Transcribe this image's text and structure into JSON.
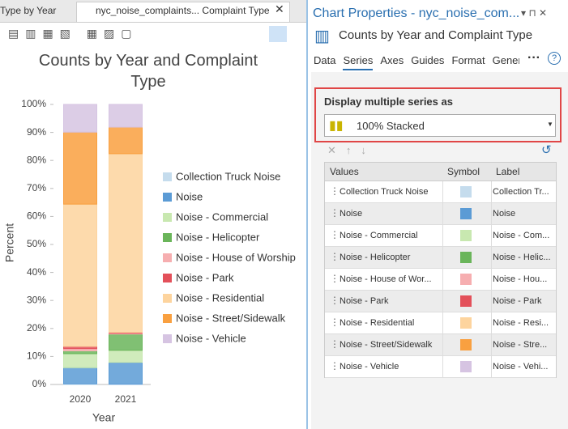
{
  "tabs": [
    "Type by Year",
    "nyc_noise_complaints... Complaint Type"
  ],
  "chart_data": {
    "type": "bar",
    "stacked": true,
    "title": "Counts by Year and Complaint Type",
    "x_label": "Year",
    "y_label": "Percent",
    "categories": [
      "2020",
      "2021"
    ],
    "series": [
      {
        "name": "Collection Truck Noise",
        "color": "#c5dced",
        "values": [
          0.2,
          0.1
        ]
      },
      {
        "name": "Noise",
        "color": "#5b9bd5",
        "values": [
          5.8,
          7.8
        ]
      },
      {
        "name": "Noise - Commercial",
        "color": "#c8e8b0",
        "values": [
          5,
          4.3
        ]
      },
      {
        "name": "Noise - Helicopter",
        "color": "#6ab55a",
        "values": [
          1,
          5.8
        ]
      },
      {
        "name": "Noise - House of Worship",
        "color": "#f6aeb0",
        "values": [
          0.8,
          0.3
        ]
      },
      {
        "name": "Noise - Park",
        "color": "#e3505a",
        "values": [
          0.8,
          0.3
        ]
      },
      {
        "name": "Noise - Residential",
        "color": "#fdd49e",
        "values": [
          50.8,
          63.8
        ]
      },
      {
        "name": "Noise - Street/Sidewalk",
        "color": "#f9a040",
        "values": [
          25.7,
          9.5
        ]
      },
      {
        "name": "Noise - Vehicle",
        "color": "#d6c4e2",
        "values": [
          9.9,
          8.1
        ]
      }
    ],
    "ylim": [
      0,
      100
    ],
    "yticks": [
      {
        "value": 0,
        "label": "0%"
      },
      {
        "value": 10,
        "label": "10%"
      },
      {
        "value": 20,
        "label": "20%"
      },
      {
        "value": 30,
        "label": "30%"
      },
      {
        "value": 40,
        "label": "40%"
      },
      {
        "value": 50,
        "label": "50%"
      },
      {
        "value": 60,
        "label": "60%"
      },
      {
        "value": 70,
        "label": "70%"
      },
      {
        "value": 80,
        "label": "80%"
      },
      {
        "value": 90,
        "label": "90%"
      },
      {
        "value": 100,
        "label": "100%"
      }
    ]
  },
  "properties": {
    "title": "Chart Properties - nyc_noise_com...",
    "subtitle": "Counts by Year and Complaint Type",
    "tabs": [
      "Data",
      "Series",
      "Axes",
      "Guides",
      "Format",
      "Gener"
    ],
    "section_label": "Display multiple series as",
    "dropdown": "100% Stacked",
    "table": {
      "headers": [
        "Values",
        "Symbol",
        "Label"
      ],
      "rows": [
        [
          "Collection Truck Noise",
          "Collection Tr..."
        ],
        [
          "Noise",
          "Noise"
        ],
        [
          "Noise - Commercial",
          "Noise - Com..."
        ],
        [
          "Noise - Helicopter",
          "Noise - Helic..."
        ],
        [
          "Noise - House of Wor...",
          "Noise - Hou..."
        ],
        [
          "Noise - Park",
          "Noise - Park"
        ],
        [
          "Noise - Residential",
          "Noise - Resi..."
        ],
        [
          "Noise - Street/Sidewalk",
          "Noise - Stre..."
        ],
        [
          "Noise - Vehicle",
          "Noise - Vehi..."
        ]
      ]
    }
  }
}
